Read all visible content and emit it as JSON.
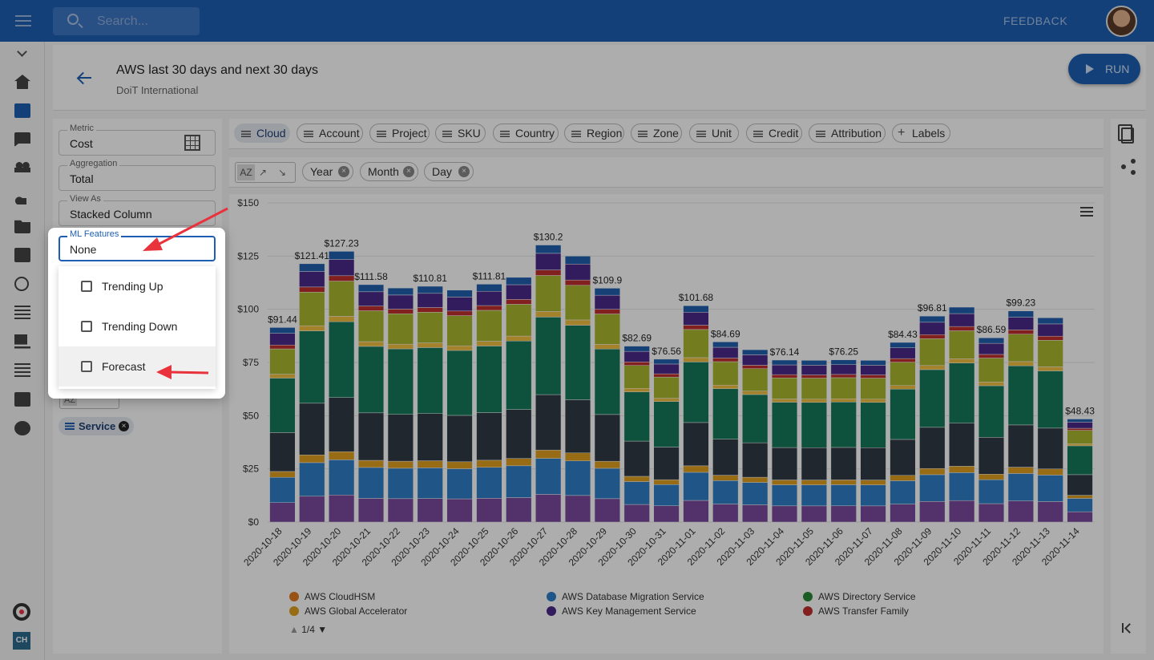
{
  "topbar": {
    "search_placeholder": "Search...",
    "feedback_label": "FEEDBACK"
  },
  "rail": {
    "icons": [
      "chevron-down-icon",
      "home-icon",
      "bar-chart-icon",
      "chat-icon",
      "people-icon",
      "shapes-icon",
      "folder-icon",
      "document-icon",
      "history-icon",
      "list-icon",
      "laptop-icon",
      "lines-icon",
      "badge-icon",
      "gear-icon"
    ],
    "bottom_logo_text": "CH"
  },
  "header": {
    "title": "AWS last 30 days and next 30 days",
    "subtitle": "DoiT International",
    "run_label": "RUN"
  },
  "options": {
    "metric": {
      "label": "Metric",
      "value": "Cost"
    },
    "aggregation": {
      "label": "Aggregation",
      "value": "Total"
    },
    "view_as": {
      "label": "View As",
      "value": "Stacked Column"
    },
    "ml_features": {
      "label": "ML Features",
      "value": "None"
    },
    "ml_options": [
      "Trending Up",
      "Trending Down",
      "Forecast"
    ],
    "highlighted_option": "Forecast",
    "group_chip": "Service"
  },
  "filters": [
    "Cloud",
    "Account",
    "Project",
    "SKU",
    "Country",
    "Region",
    "Zone",
    "Unit",
    "Credit",
    "Attribution"
  ],
  "labels_button": "Labels",
  "active_filter": "Cloud",
  "sort_label": "AZ",
  "group_by": [
    "Year",
    "Month",
    "Day"
  ],
  "chart_data": {
    "type": "bar",
    "stacked": true,
    "ylim": [
      0,
      150
    ],
    "yticks": [
      "$0",
      "$25",
      "$50",
      "$75",
      "$100",
      "$125",
      "$150"
    ],
    "categories": [
      "2020-10-18",
      "2020-10-19",
      "2020-10-20",
      "2020-10-21",
      "2020-10-22",
      "2020-10-23",
      "2020-10-24",
      "2020-10-25",
      "2020-10-26",
      "2020-10-27",
      "2020-10-28",
      "2020-10-29",
      "2020-10-30",
      "2020-10-31",
      "2020-11-01",
      "2020-11-02",
      "2020-11-03",
      "2020-11-04",
      "2020-11-05",
      "2020-11-06",
      "2020-11-07",
      "2020-11-08",
      "2020-11-09",
      "2020-11-10",
      "2020-11-11",
      "2020-11-12",
      "2020-11-13",
      "2020-11-14"
    ],
    "totals": [
      91.44,
      121.41,
      127.23,
      111.58,
      110,
      110.81,
      109,
      111.81,
      115,
      130.2,
      125,
      109.9,
      82.69,
      76.56,
      101.68,
      84.69,
      81,
      76.14,
      76,
      76.25,
      76,
      84.43,
      96.81,
      101,
      86.59,
      99.23,
      96,
      48.43
    ],
    "data_labels": [
      "$91.44",
      "$121.41",
      "$127.23",
      "$111.58",
      "",
      "$110.81",
      "",
      "$111.81",
      "",
      "$130.2",
      "",
      "$109.9",
      "$82.69",
      "$76.56",
      "$101.68",
      "$84.69",
      "",
      "$76.14",
      "",
      "$76.25",
      "",
      "$84.43",
      "$96.81",
      "",
      "$86.59",
      "$99.23",
      "",
      "$48.43"
    ],
    "series_colors": [
      "#7b4a9e",
      "#2f7fc8",
      "#e0a020",
      "#303a45",
      "#167a5a",
      "#f0c040",
      "#aab830",
      "#c03030",
      "#4a2a8a",
      "#2060b0"
    ],
    "legend": [
      {
        "name": "AWS CloudHSM",
        "color": "#e07a20"
      },
      {
        "name": "AWS Database Migration Service",
        "color": "#2f7fc8"
      },
      {
        "name": "AWS Directory Service",
        "color": "#2a8a3a"
      },
      {
        "name": "AWS Global Accelerator",
        "color": "#e0a020"
      },
      {
        "name": "AWS Key Management Service",
        "color": "#4a2a8a"
      },
      {
        "name": "AWS Transfer Family",
        "color": "#c03030"
      }
    ],
    "legend_page": "1/4"
  }
}
